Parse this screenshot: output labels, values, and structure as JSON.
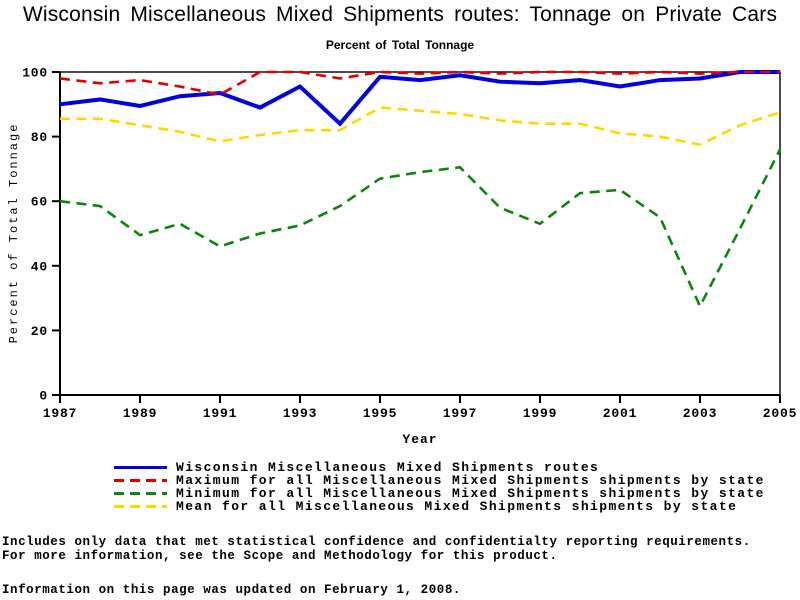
{
  "page": {
    "title": "Wisconsin Miscellaneous Mixed Shipments routes: Tonnage on Private Cars",
    "subtitle": "Percent of Total Tonnage",
    "footnote_line1": "Includes only data that met statistical confidence and confidentialty reporting requirements.",
    "footnote_line2": "For more information, see the Scope and Methodology for this product.",
    "updated_note": "Information on this page was updated on February 1, 2008."
  },
  "chart_data": {
    "type": "line",
    "title": "Wisconsin Miscellaneous Mixed Shipments routes: Tonnage on Private Cars",
    "subtitle": "Percent of Total Tonnage",
    "xlabel": "Year",
    "ylabel": "Percent of Total Tonnage",
    "xlim": [
      1987,
      2005
    ],
    "ylim": [
      0,
      100
    ],
    "x_ticks": [
      1987,
      1989,
      1991,
      1993,
      1995,
      1997,
      1999,
      2001,
      2003,
      2005
    ],
    "y_ticks": [
      0,
      20,
      40,
      60,
      80,
      100
    ],
    "grid": false,
    "legend_position": "bottom-left",
    "frame": true,
    "axis_color": "#000000",
    "x": [
      1987,
      1988,
      1989,
      1990,
      1991,
      1992,
      1993,
      1994,
      1995,
      1996,
      1997,
      1998,
      1999,
      2000,
      2001,
      2002,
      2003,
      2004,
      2005
    ],
    "series": [
      {
        "id": "wisconsin",
        "name": "Wisconsin Miscellaneous Mixed Shipments routes",
        "color": "#0000E0",
        "style": "solid",
        "width": 4,
        "values": [
          90,
          91.5,
          89.5,
          92.5,
          93.5,
          89,
          95.5,
          84,
          98.5,
          97.5,
          99,
          97,
          96.5,
          97.5,
          95.5,
          97.5,
          98,
          100,
          100
        ]
      },
      {
        "id": "maximum",
        "name": "Maximum for all Miscellaneous Mixed Shipments shipments by state",
        "color": "#E00000",
        "style": "dashed",
        "width": 2.6,
        "values": [
          98,
          96.5,
          97.5,
          95.5,
          93,
          100,
          100,
          98,
          100,
          99.5,
          100,
          99.5,
          100,
          100,
          99.5,
          100,
          99.5,
          100,
          100
        ]
      },
      {
        "id": "minimum",
        "name": "Minimum for all Miscellaneous Mixed Shipments shipments by state",
        "color": "#0A870A",
        "style": "dashed",
        "width": 2.6,
        "values": [
          60,
          58.5,
          49.5,
          53,
          46,
          50,
          52.5,
          58.5,
          67,
          69,
          70.5,
          58,
          53,
          62.5,
          63.5,
          55,
          27.5,
          51.5,
          76
        ]
      },
      {
        "id": "mean",
        "name": "Mean for all Miscellaneous Mixed Shipments shipments by state",
        "color": "#FFD700",
        "style": "dashed",
        "width": 2.6,
        "values": [
          85.5,
          85.5,
          83.5,
          81.5,
          78.5,
          80.5,
          82,
          82,
          89,
          88,
          87,
          85,
          84,
          84,
          81,
          80,
          77.5,
          83.5,
          87.5
        ]
      }
    ]
  }
}
